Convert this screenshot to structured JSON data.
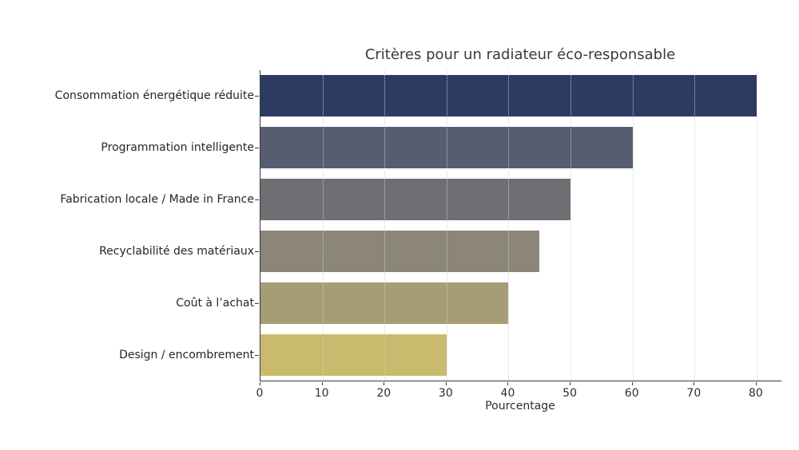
{
  "figure": {
    "background": "#ffffff",
    "spine_color": "#3b3b3b",
    "grid_color": "#cfcfcf"
  },
  "chart_data": {
    "type": "bar",
    "orientation": "horizontal",
    "title": "Critères pour un radiateur éco-responsable",
    "xlabel": "Pourcentage",
    "ylabel": "",
    "categories": [
      "Consommation énergétique réduite",
      "Programmation intelligente",
      "Fabrication locale / Made in France",
      "Recyclabilité des matériaux",
      "Coût à l’achat",
      "Design / encombrement"
    ],
    "values": [
      80,
      60,
      50,
      45,
      40,
      30
    ],
    "bar_colors": [
      "#2d3b63",
      "#565d71",
      "#6e6f72",
      "#8b8678",
      "#a69d75",
      "#c9bb6d"
    ],
    "xlim": [
      0,
      84
    ],
    "x_ticks": [
      0,
      10,
      20,
      30,
      40,
      50,
      60,
      70,
      80
    ],
    "grid": "vertical dotted",
    "legend": "none"
  }
}
